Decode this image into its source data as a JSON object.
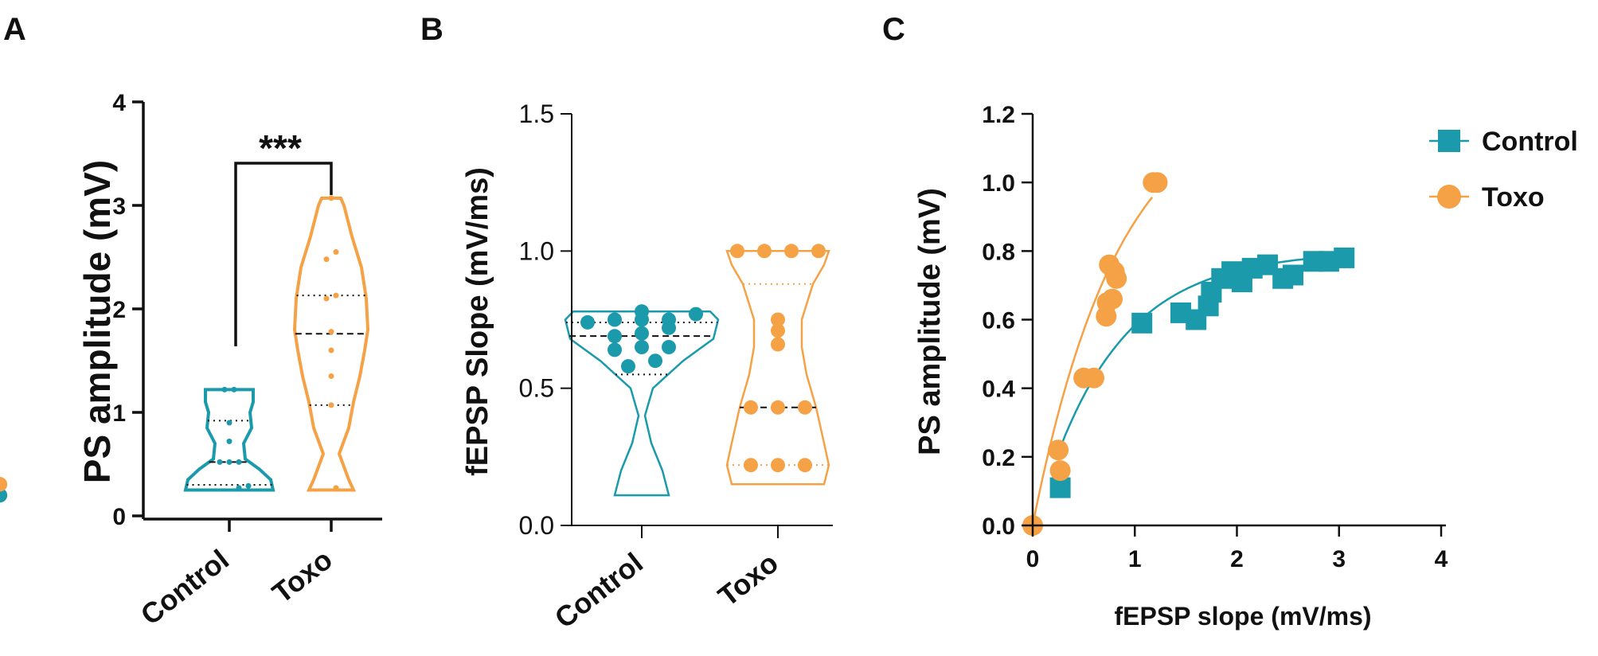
{
  "colors": {
    "control": "#1a9aaa",
    "toxo": "#f5a146",
    "axis": "#111111"
  },
  "chart_data": [
    {
      "panel": "A",
      "type": "violin",
      "ylabel": "PS amplitude (mV)",
      "ylim": [
        0,
        4
      ],
      "yticks": [
        "0",
        "1",
        "2",
        "3",
        "4"
      ],
      "categories": [
        "Control",
        "Toxo"
      ],
      "significance": "***",
      "series": [
        {
          "name": "Control",
          "median": 0.52,
          "q1": 0.3,
          "q3": 0.92,
          "values": [
            0.25,
            0.25,
            0.25,
            0.27,
            0.29,
            0.52,
            0.52,
            0.52,
            0.72,
            0.9,
            1.22,
            1.22
          ]
        },
        {
          "name": "Toxo",
          "median": 1.76,
          "q1": 1.07,
          "q3": 2.13,
          "values": [
            0.25,
            0.27,
            1.07,
            1.35,
            1.6,
            1.78,
            2.1,
            2.13,
            2.48,
            2.55,
            3.07
          ]
        }
      ]
    },
    {
      "panel": "B",
      "type": "violin",
      "ylabel": "fEPSP Slope (mV/ms)",
      "ylim": [
        0,
        1.5
      ],
      "yticks": [
        "0.0",
        "0.5",
        "1.0",
        "1.5"
      ],
      "categories": [
        "Control",
        "Toxo"
      ],
      "series": [
        {
          "name": "Control",
          "median": 0.69,
          "q1": 0.55,
          "q3": 0.74,
          "values": [
            0.11,
            0.11,
            0.11,
            0.11,
            0.58,
            0.6,
            0.64,
            0.65,
            0.65,
            0.69,
            0.7,
            0.72,
            0.74,
            0.75,
            0.75,
            0.75,
            0.77,
            0.78
          ]
        },
        {
          "name": "Toxo",
          "median": 0.43,
          "q1": 0.22,
          "q3": 0.88,
          "values": [
            0.15,
            0.15,
            0.15,
            0.15,
            0.22,
            0.22,
            0.22,
            0.43,
            0.43,
            0.43,
            0.66,
            0.71,
            0.75,
            1.0,
            1.0,
            1.0,
            1.0
          ]
        }
      ]
    },
    {
      "panel": "C",
      "type": "scatter",
      "xlabel": "fEPSP slope (mV/ms)",
      "ylabel": "PS amplitude (mV)",
      "xlim": [
        0,
        4
      ],
      "ylim": [
        0,
        1.2
      ],
      "xticks": [
        "0",
        "1",
        "2",
        "3",
        "4"
      ],
      "yticks": [
        "0.0",
        "0.2",
        "0.4",
        "0.6",
        "0.8",
        "1.0",
        "1.2"
      ],
      "legend": [
        "Control",
        "Toxo"
      ],
      "series": [
        {
          "name": "Control",
          "marker": "square",
          "x": [
            0.27,
            1.07,
            1.45,
            1.6,
            1.72,
            1.75,
            1.85,
            1.95,
            2.05,
            2.15,
            2.3,
            2.45,
            2.55,
            2.75,
            2.9,
            3.05
          ],
          "y": [
            0.11,
            0.59,
            0.62,
            0.6,
            0.64,
            0.68,
            0.72,
            0.74,
            0.71,
            0.75,
            0.76,
            0.72,
            0.73,
            0.77,
            0.77,
            0.78
          ]
        },
        {
          "name": "Toxo",
          "marker": "circle",
          "x": [
            0,
            0.25,
            0.27,
            0.5,
            0.6,
            0.72,
            0.73,
            0.75,
            0.78,
            0.8,
            0.82,
            1.18,
            1.22
          ],
          "y": [
            0,
            0.22,
            0.16,
            0.43,
            0.43,
            0.61,
            0.65,
            0.76,
            0.66,
            0.74,
            0.72,
            1.0,
            1.0
          ]
        }
      ]
    }
  ]
}
